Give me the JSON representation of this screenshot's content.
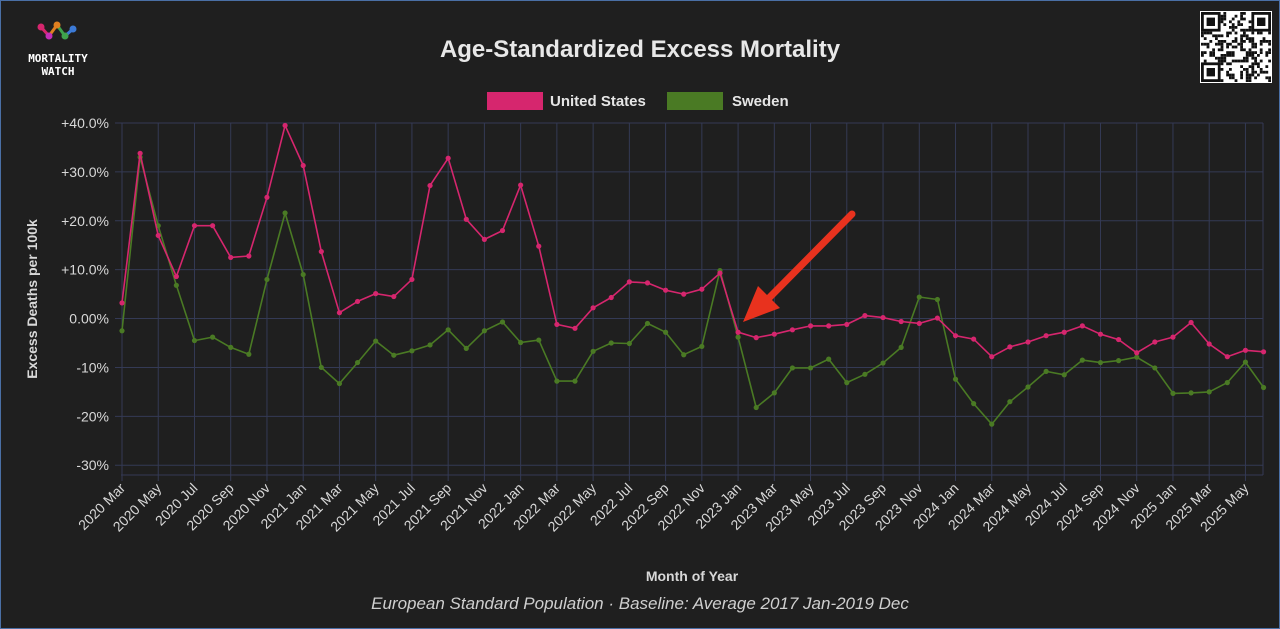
{
  "brand": {
    "line1": "MORTALITY",
    "line2": "WATCH"
  },
  "chart_data": {
    "type": "line",
    "title": "Age-Standardized Excess Mortality",
    "subtitle": "European Standard Population · Baseline: Average 2017 Jan-2019 Dec",
    "xlabel": "Month of Year",
    "ylabel": "Excess Deaths per 100k",
    "ylim": [
      -32,
      40
    ],
    "y_ticks": [
      40,
      30,
      20,
      10,
      0,
      -10,
      -20,
      -30
    ],
    "y_tick_labels": [
      "+40.0%",
      "+30.0%",
      "+20.0%",
      "+10.0%",
      "0.00%",
      "-10%",
      "-20%",
      "-30%"
    ],
    "x_tick_labels": [
      "2020 Mar",
      "2020 May",
      "2020 Jul",
      "2020 Sep",
      "2020 Nov",
      "2021 Jan",
      "2021 Mar",
      "2021 May",
      "2021 Jul",
      "2021 Sep",
      "2021 Nov",
      "2022 Jan",
      "2022 Mar",
      "2022 May",
      "2022 Jul",
      "2022 Sep",
      "2022 Nov",
      "2023 Jan",
      "2023 Mar",
      "2023 May",
      "2023 Jul",
      "2023 Sep",
      "2023 Nov",
      "2024 Jan",
      "2024 Mar",
      "2024 May",
      "2024 Jul",
      "2024 Sep",
      "2024 Nov",
      "2025 Jan",
      "2025 Mar",
      "2025 May"
    ],
    "legend_position": "top-center",
    "annotation": "red arrow pointing to 2023 Jan",
    "series": [
      {
        "name": "United States",
        "color": "#d6266e",
        "values": [
          3.2,
          33.8,
          17.0,
          8.6,
          19.0,
          19.0,
          12.5,
          12.8,
          24.8,
          39.5,
          31.3,
          13.7,
          1.2,
          3.5,
          5.1,
          4.5,
          8.0,
          27.2,
          32.8,
          20.3,
          16.2,
          18.0,
          27.3,
          14.8,
          -1.2,
          -2.0,
          2.2,
          4.3,
          7.5,
          7.3,
          5.8,
          5.0,
          6.0,
          9.3,
          -2.8,
          -3.9,
          -3.2,
          -2.3,
          -1.5,
          -1.5,
          -1.2,
          0.6,
          0.2,
          -0.6,
          -1.0,
          0.1,
          -3.5,
          -4.2,
          -7.8,
          -5.8,
          -4.8,
          -3.5,
          -2.8,
          -1.5,
          -3.2,
          -4.3,
          -7.0,
          -4.8,
          -3.8,
          -0.8,
          -5.2,
          -7.8,
          -6.5,
          -6.8
        ]
      },
      {
        "name": "Sweden",
        "color": "#4a7a24",
        "values": [
          -2.5,
          33.0,
          19.0,
          6.8,
          -4.5,
          -3.8,
          -5.9,
          -7.3,
          8.0,
          21.6,
          9.0,
          -10.0,
          -13.3,
          -9.0,
          -4.6,
          -7.5,
          -6.6,
          -5.4,
          -2.3,
          -6.1,
          -2.5,
          -0.7,
          -4.9,
          -4.4,
          -12.8,
          -12.8,
          -6.7,
          -5.0,
          -5.1,
          -1.0,
          -2.8,
          -7.4,
          -5.7,
          9.8,
          -3.8,
          -18.2,
          -15.2,
          -10.1,
          -10.1,
          -8.3,
          -13.1,
          -11.4,
          -9.1,
          -5.9,
          4.4,
          3.9,
          -12.4,
          -17.4,
          -21.6,
          -17.0,
          -14.0,
          -10.8,
          -11.5,
          -8.5,
          -9.0,
          -8.6,
          -7.9,
          -10.1,
          -15.3,
          -15.2,
          -15.0,
          -13.1,
          -8.9,
          -14.1
        ]
      }
    ]
  },
  "colors": {
    "background": "#1f1f1f",
    "grid": "#343a55",
    "arrow": "#e8321e"
  }
}
